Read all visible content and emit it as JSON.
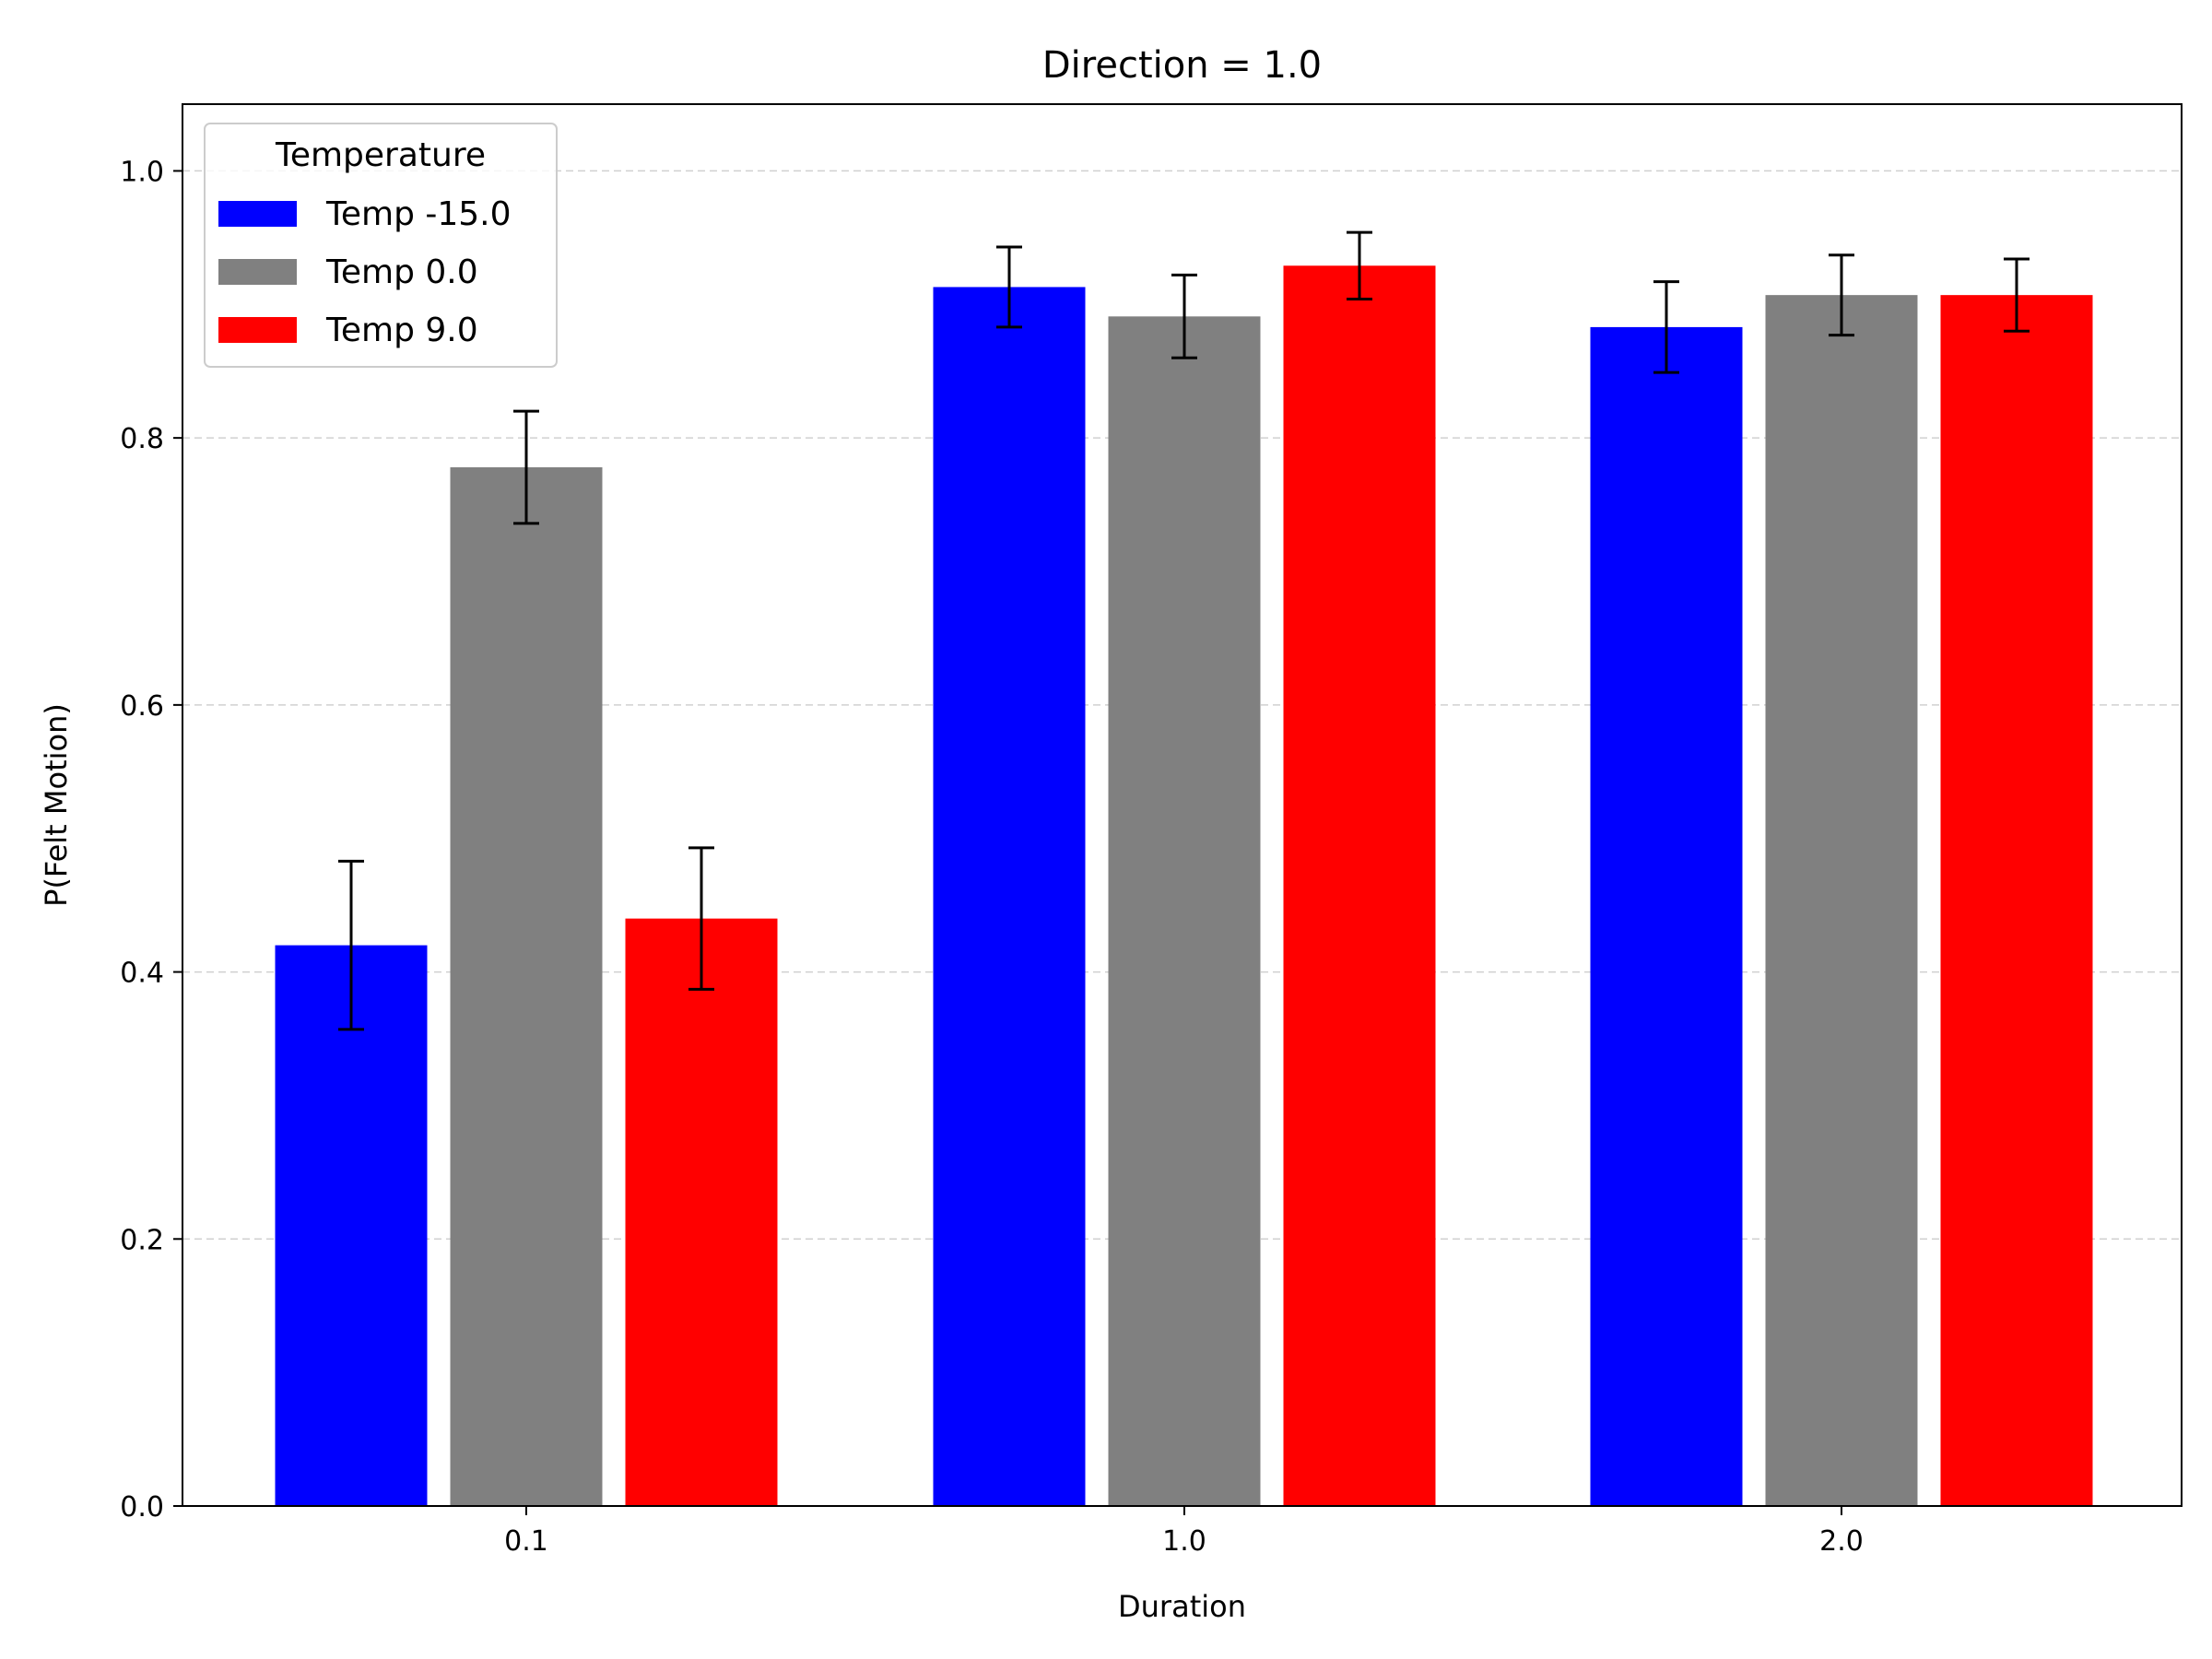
{
  "chart_data": {
    "type": "bar",
    "title": "Direction = 1.0",
    "xlabel": "Duration",
    "ylabel": "P(Felt Motion)",
    "categories": [
      "0.1",
      "1.0",
      "2.0"
    ],
    "ylim": [
      0,
      1.05
    ],
    "yticks": [
      0.0,
      0.2,
      0.4,
      0.6,
      0.8,
      1.0
    ],
    "ytick_labels": [
      "0.0",
      "0.2",
      "0.4",
      "0.6",
      "0.8",
      "1.0"
    ],
    "grid": "horizontal dashed",
    "legend": {
      "title": "Temperature",
      "placement": "top-left"
    },
    "series": [
      {
        "name": "Temp -15.0",
        "color": "#0000ff",
        "values": [
          0.42,
          0.913,
          0.883
        ],
        "error": [
          0.063,
          0.03,
          0.034
        ]
      },
      {
        "name": "Temp 0.0",
        "color": "#808080",
        "values": [
          0.778,
          0.891,
          0.907
        ],
        "error": [
          0.042,
          0.031,
          0.03
        ]
      },
      {
        "name": "Temp 9.0",
        "color": "#ff0000",
        "values": [
          0.44,
          0.929,
          0.907
        ],
        "error": [
          0.053,
          0.025,
          0.027
        ]
      }
    ]
  }
}
